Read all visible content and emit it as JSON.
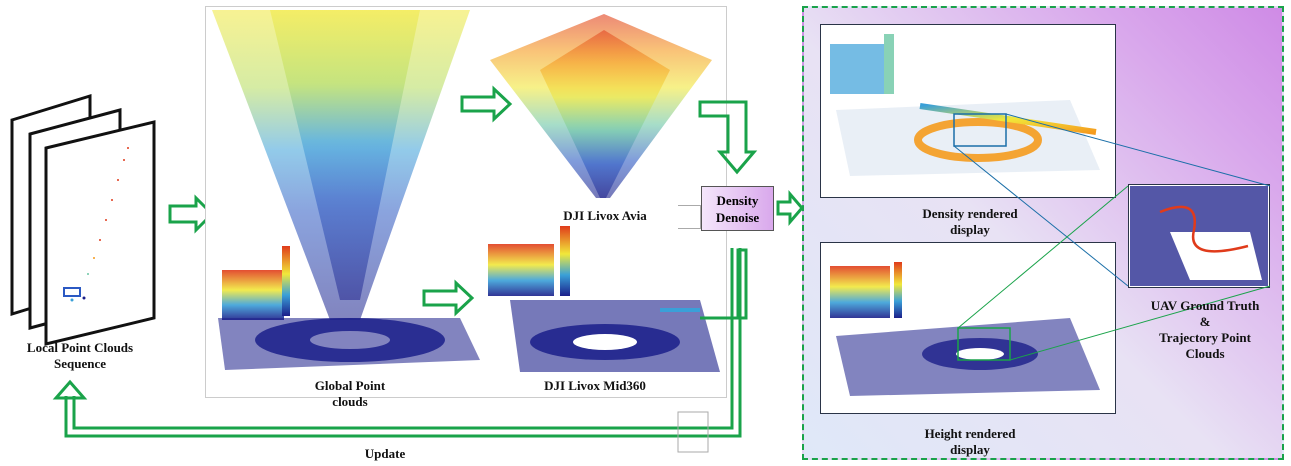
{
  "labels": {
    "local_sequence": "Local Point Clouds\nSequence",
    "global_point_clouds": "Global Point\nclouds",
    "avia": "DJI Livox Avia",
    "mid360": "DJI Livox Mid360",
    "density_denoise": "Density\nDenoise",
    "density_rendered": "Density rendered\ndisplay",
    "height_rendered": "Height rendered\ndisplay",
    "uav_ground_truth": "UAV Ground Truth\n&\nTrajectory Point\nClouds",
    "update": "Update"
  },
  "colors": {
    "arrow_green": "#1aa34a",
    "panel_border": "#1aa34a",
    "denoise_fill": "#d9a8ec",
    "cmap": [
      "#1b1f8a",
      "#2b59c3",
      "#3aa0d8",
      "#6cc7a4",
      "#b4dc5a",
      "#f1e83a",
      "#f59b1e",
      "#e03b1b"
    ]
  }
}
